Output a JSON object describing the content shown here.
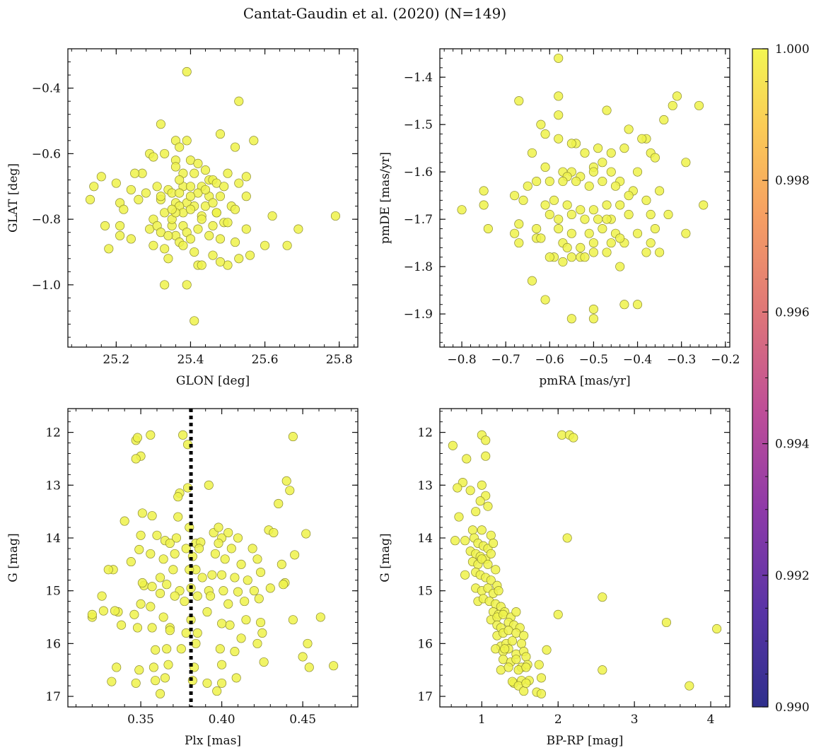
{
  "figure": {
    "title": "Cantat-Gaudin et al. (2020) (N=149)",
    "point_color": "#eef24a",
    "point_edge": "#8a8a30"
  },
  "colorbar": {
    "min": 0.99,
    "max": 1.0,
    "tick_labels": [
      "0.990",
      "0.992",
      "0.994",
      "0.996",
      "0.998",
      "1.000"
    ],
    "tick_values": [
      0.99,
      0.992,
      0.994,
      0.996,
      0.998,
      1.0
    ],
    "colors": [
      "#3b2f8f",
      "#6a35a8",
      "#a63ea6",
      "#d46a80",
      "#f5a25a",
      "#f4f650"
    ]
  },
  "chart_data": [
    {
      "type": "scatter",
      "name": "position",
      "title": "",
      "xlabel": "GLON [deg]",
      "ylabel": "GLAT [deg]",
      "xlim": [
        25.07,
        25.85
      ],
      "ylim": [
        -1.19,
        -0.28
      ],
      "xticks": [
        25.2,
        25.4,
        25.6,
        25.8
      ],
      "xtick_labels": [
        "25.2",
        "25.4",
        "25.6",
        "25.8"
      ],
      "yticks": [
        -1.0,
        -0.8,
        -0.6,
        -0.4
      ],
      "ytick_labels": [
        "−1.0",
        "−0.8",
        "−0.6",
        "−0.4"
      ],
      "y_inverted": false,
      "x": [
        25.39,
        25.53,
        25.32,
        25.36,
        25.39,
        25.37,
        25.48,
        25.52,
        25.57,
        25.29,
        25.3,
        25.33,
        25.36,
        25.4,
        25.42,
        25.44,
        25.5,
        25.27,
        25.38,
        25.41,
        25.45,
        25.55,
        25.25,
        25.16,
        25.14,
        25.2,
        25.24,
        25.28,
        25.31,
        25.34,
        25.38,
        25.4,
        25.43,
        25.46,
        25.47,
        25.49,
        25.53,
        25.35,
        25.37,
        25.42,
        25.45,
        25.48,
        25.21,
        25.22,
        25.26,
        25.32,
        25.36,
        25.39,
        25.41,
        25.44,
        25.46,
        25.51,
        25.55,
        25.13,
        25.21,
        25.3,
        25.33,
        25.37,
        25.38,
        25.4,
        25.43,
        25.47,
        25.52,
        25.62,
        25.79,
        25.17,
        25.21,
        25.29,
        25.31,
        25.35,
        25.38,
        25.43,
        25.46,
        25.49,
        25.55,
        25.24,
        25.32,
        25.36,
        25.39,
        25.42,
        25.48,
        25.69,
        25.18,
        25.3,
        25.33,
        25.37,
        25.4,
        25.45,
        25.52,
        25.56,
        25.6,
        25.66,
        25.34,
        25.38,
        25.41,
        25.46,
        25.5,
        25.53,
        25.42,
        25.43,
        25.48,
        25.33,
        25.39,
        25.34,
        25.35,
        25.36,
        25.4,
        25.44,
        25.47,
        25.5,
        25.41,
        25.36,
        25.37,
        25.32,
        25.35
      ],
      "y": [
        -0.35,
        -0.44,
        -0.51,
        -0.56,
        -0.56,
        -0.58,
        -0.54,
        -0.58,
        -0.56,
        -0.6,
        -0.61,
        -0.6,
        -0.62,
        -0.62,
        -0.63,
        -0.65,
        -0.66,
        -0.66,
        -0.66,
        -0.66,
        -0.68,
        -0.67,
        -0.66,
        -0.67,
        -0.7,
        -0.69,
        -0.71,
        -0.72,
        -0.7,
        -0.71,
        -0.7,
        -0.7,
        -0.7,
        -0.68,
        -0.69,
        -0.7,
        -0.69,
        -0.72,
        -0.72,
        -0.72,
        -0.73,
        -0.73,
        -0.75,
        -0.77,
        -0.74,
        -0.74,
        -0.75,
        -0.75,
        -0.76,
        -0.76,
        -0.75,
        -0.76,
        -0.73,
        -0.74,
        -0.82,
        -0.8,
        -0.78,
        -0.76,
        -0.78,
        -0.77,
        -0.79,
        -0.78,
        -0.77,
        -0.79,
        -0.79,
        -0.82,
        -0.85,
        -0.83,
        -0.82,
        -0.82,
        -0.82,
        -0.8,
        -0.82,
        -0.81,
        -0.83,
        -0.86,
        -0.84,
        -0.85,
        -0.84,
        -0.83,
        -0.86,
        -0.83,
        -0.89,
        -0.88,
        -0.89,
        -0.87,
        -0.86,
        -0.85,
        -0.87,
        -0.91,
        -0.88,
        -0.88,
        -0.92,
        -0.88,
        -0.9,
        -0.91,
        -0.94,
        -0.92,
        -0.94,
        -0.94,
        -0.93,
        -1.0,
        -1.0,
        -0.85,
        -0.8,
        -0.78,
        -0.73,
        -0.71,
        -0.78,
        -0.81,
        -1.11,
        -0.64,
        -0.68,
        -0.73,
        -0.77
      ]
    },
    {
      "type": "scatter",
      "name": "proper-motion",
      "title": "",
      "xlabel": "pmRA [mas/yr]",
      "ylabel": "pmDE [mas/yr]",
      "xlim": [
        -0.85,
        -0.19
      ],
      "ylim": [
        -1.97,
        -1.34
      ],
      "xticks": [
        -0.8,
        -0.7,
        -0.6,
        -0.5,
        -0.4,
        -0.3,
        -0.2
      ],
      "xtick_labels": [
        "−0.8",
        "−0.7",
        "−0.6",
        "−0.5",
        "−0.4",
        "−0.3",
        "−0.2"
      ],
      "yticks": [
        -1.9,
        -1.8,
        -1.7,
        -1.6,
        -1.5,
        -1.4
      ],
      "ytick_labels": [
        "−1.9",
        "−1.8",
        "−1.7",
        "−1.6",
        "−1.5",
        "−1.4"
      ],
      "y_inverted": false,
      "x": [
        -0.58,
        -0.58,
        -0.58,
        -0.67,
        -0.62,
        -0.61,
        -0.31,
        -0.32,
        -0.26,
        -0.34,
        -0.38,
        -0.47,
        -0.42,
        -0.39,
        -0.54,
        -0.58,
        -0.55,
        -0.52,
        -0.64,
        -0.49,
        -0.46,
        -0.37,
        -0.36,
        -0.43,
        -0.29,
        -0.48,
        -0.5,
        -0.55,
        -0.57,
        -0.61,
        -0.56,
        -0.53,
        -0.5,
        -0.46,
        -0.44,
        -0.4,
        -0.63,
        -0.65,
        -0.6,
        -0.57,
        -0.54,
        -0.51,
        -0.48,
        -0.45,
        -0.41,
        -0.35,
        -0.75,
        -0.68,
        -0.66,
        -0.61,
        -0.59,
        -0.56,
        -0.53,
        -0.5,
        -0.47,
        -0.44,
        -0.38,
        -0.8,
        -0.75,
        -0.67,
        -0.63,
        -0.6,
        -0.58,
        -0.55,
        -0.52,
        -0.49,
        -0.46,
        -0.42,
        -0.37,
        -0.25,
        -0.74,
        -0.68,
        -0.63,
        -0.58,
        -0.55,
        -0.51,
        -0.48,
        -0.45,
        -0.4,
        -0.36,
        -0.67,
        -0.62,
        -0.57,
        -0.53,
        -0.5,
        -0.46,
        -0.43,
        -0.37,
        -0.29,
        -0.59,
        -0.55,
        -0.5,
        -0.47,
        -0.44,
        -0.38,
        -0.35,
        -0.6,
        -0.57,
        -0.53,
        -0.64,
        -0.44,
        -0.61,
        -0.5,
        -0.43,
        -0.4,
        -0.55,
        -0.5,
        -0.52,
        -0.56,
        -0.47,
        -0.42,
        -0.33
      ],
      "y": [
        -1.36,
        -1.44,
        -1.48,
        -1.45,
        -1.5,
        -1.52,
        -1.44,
        -1.46,
        -1.46,
        -1.49,
        -1.53,
        -1.47,
        -1.51,
        -1.53,
        -1.54,
        -1.53,
        -1.54,
        -1.56,
        -1.56,
        -1.55,
        -1.56,
        -1.56,
        -1.57,
        -1.55,
        -1.58,
        -1.58,
        -1.59,
        -1.6,
        -1.6,
        -1.59,
        -1.61,
        -1.61,
        -1.6,
        -1.6,
        -1.62,
        -1.6,
        -1.62,
        -1.63,
        -1.62,
        -1.62,
        -1.62,
        -1.63,
        -1.62,
        -1.63,
        -1.64,
        -1.64,
        -1.64,
        -1.65,
        -1.66,
        -1.67,
        -1.66,
        -1.67,
        -1.68,
        -1.68,
        -1.67,
        -1.67,
        -1.66,
        -1.68,
        -1.67,
        -1.71,
        -1.72,
        -1.69,
        -1.7,
        -1.69,
        -1.7,
        -1.7,
        -1.7,
        -1.69,
        -1.69,
        -1.67,
        -1.72,
        -1.73,
        -1.74,
        -1.72,
        -1.73,
        -1.73,
        -1.72,
        -1.73,
        -1.73,
        -1.72,
        -1.75,
        -1.74,
        -1.75,
        -1.76,
        -1.75,
        -1.75,
        -1.75,
        -1.75,
        -1.73,
        -1.78,
        -1.78,
        -1.77,
        -1.77,
        -1.74,
        -1.77,
        -1.77,
        -1.78,
        -1.79,
        -1.78,
        -1.83,
        -1.8,
        -1.87,
        -1.89,
        -1.88,
        -1.88,
        -1.91,
        -1.91,
        -1.78,
        -1.76,
        -1.7,
        -1.65,
        -1.69
      ]
    },
    {
      "type": "scatter",
      "name": "parallax-magnitude",
      "title": "",
      "xlabel": "Plx [mas]",
      "ylabel": "G [mag]",
      "xlim": [
        0.305,
        0.484
      ],
      "ylim": [
        17.2,
        11.55
      ],
      "xticks": [
        0.35,
        0.4,
        0.45
      ],
      "xtick_labels": [
        "0.35",
        "0.40",
        "0.45"
      ],
      "yticks": [
        12,
        13,
        14,
        15,
        16,
        17
      ],
      "ytick_labels": [
        "12",
        "13",
        "14",
        "15",
        "16",
        "17"
      ],
      "y_inverted": true,
      "vline": {
        "x": 0.381,
        "style": "dotted",
        "color": "#000000"
      },
      "x": [
        0.347,
        0.348,
        0.356,
        0.376,
        0.379,
        0.444,
        0.35,
        0.347,
        0.379,
        0.392,
        0.374,
        0.44,
        0.442,
        0.373,
        0.357,
        0.435,
        0.351,
        0.373,
        0.34,
        0.333,
        0.38,
        0.384,
        0.387,
        0.365,
        0.372,
        0.395,
        0.398,
        0.4,
        0.404,
        0.406,
        0.452,
        0.429,
        0.35,
        0.36,
        0.368,
        0.378,
        0.386,
        0.398,
        0.41,
        0.419,
        0.432,
        0.349,
        0.356,
        0.364,
        0.371,
        0.382,
        0.384,
        0.396,
        0.402,
        0.412,
        0.422,
        0.437,
        0.445,
        0.344,
        0.352,
        0.362,
        0.37,
        0.38,
        0.388,
        0.394,
        0.4,
        0.408,
        0.416,
        0.424,
        0.439,
        0.33,
        0.351,
        0.357,
        0.366,
        0.374,
        0.381,
        0.392,
        0.401,
        0.41,
        0.42,
        0.43,
        0.438,
        0.326,
        0.336,
        0.35,
        0.362,
        0.371,
        0.377,
        0.385,
        0.393,
        0.404,
        0.414,
        0.423,
        0.32,
        0.32,
        0.327,
        0.334,
        0.346,
        0.356,
        0.364,
        0.368,
        0.381,
        0.391,
        0.405,
        0.415,
        0.424,
        0.444,
        0.461,
        0.338,
        0.348,
        0.357,
        0.368,
        0.378,
        0.385,
        0.4,
        0.412,
        0.425,
        0.453,
        0.359,
        0.366,
        0.375,
        0.384,
        0.399,
        0.408,
        0.422,
        0.45,
        0.335,
        0.349,
        0.358,
        0.367,
        0.383,
        0.4,
        0.426,
        0.454,
        0.469,
        0.332,
        0.347,
        0.359,
        0.365,
        0.382,
        0.391,
        0.397,
        0.4,
        0.409,
        0.362
      ],
      "y": [
        12.15,
        12.1,
        12.05,
        12.05,
        12.23,
        12.08,
        12.45,
        12.5,
        13.05,
        13.0,
        13.15,
        12.92,
        13.1,
        13.22,
        13.58,
        13.35,
        13.53,
        13.6,
        13.68,
        14.6,
        13.8,
        14.1,
        14.08,
        14.05,
        14.0,
        13.9,
        13.8,
        14.0,
        13.9,
        14.2,
        13.92,
        13.85,
        13.95,
        13.95,
        14.1,
        14.2,
        14.2,
        14.1,
        14.0,
        14.2,
        13.9,
        14.22,
        14.3,
        14.4,
        14.3,
        14.35,
        14.6,
        14.3,
        14.4,
        14.5,
        14.4,
        14.5,
        14.32,
        14.45,
        14.9,
        14.75,
        14.6,
        14.6,
        14.75,
        14.7,
        14.7,
        14.75,
        14.8,
        14.65,
        14.85,
        14.6,
        14.85,
        14.92,
        14.88,
        15.0,
        14.95,
        15.0,
        15.0,
        15.02,
        15.0,
        14.95,
        14.88,
        15.1,
        15.4,
        15.25,
        15.05,
        15.1,
        15.2,
        15.1,
        15.1,
        15.25,
        15.2,
        15.15,
        15.5,
        15.45,
        15.38,
        15.38,
        15.45,
        15.3,
        15.5,
        15.7,
        15.55,
        15.4,
        15.65,
        15.55,
        15.6,
        15.55,
        15.5,
        15.65,
        15.7,
        15.7,
        15.75,
        15.8,
        15.8,
        15.62,
        15.9,
        15.8,
        16.0,
        16.12,
        16.1,
        16.1,
        16.0,
        16.1,
        16.15,
        16.0,
        16.25,
        16.45,
        16.5,
        16.45,
        16.4,
        16.45,
        16.4,
        16.35,
        16.45,
        16.42,
        16.72,
        16.75,
        16.7,
        16.65,
        16.7,
        16.75,
        16.9,
        16.75,
        16.65,
        16.95
      ]
    },
    {
      "type": "scatter",
      "name": "color-magnitude",
      "title": "",
      "xlabel": "BP-RP [mag]",
      "ylabel": "G [mag]",
      "xlim": [
        0.45,
        4.25
      ],
      "ylim": [
        17.2,
        11.55
      ],
      "xticks": [
        1,
        2,
        3,
        4
      ],
      "xtick_labels": [
        "1",
        "2",
        "3",
        "4"
      ],
      "yticks": [
        12,
        13,
        14,
        15,
        16,
        17
      ],
      "ytick_labels": [
        "12",
        "13",
        "14",
        "15",
        "16",
        "17"
      ],
      "y_inverted": true,
      "x": [
        0.62,
        1.0,
        1.05,
        2.05,
        2.15,
        2.2,
        0.8,
        1.05,
        0.75,
        0.68,
        0.85,
        1.0,
        1.05,
        0.7,
        0.92,
        0.98,
        1.08,
        0.88,
        0.65,
        0.78,
        0.9,
        1.0,
        1.12,
        0.95,
        1.02,
        1.08,
        1.15,
        2.12,
        0.85,
        0.92,
        0.98,
        1.05,
        1.12,
        0.88,
        0.95,
        1.0,
        1.08,
        1.18,
        0.78,
        0.92,
        0.98,
        1.05,
        1.12,
        1.2,
        0.92,
        1.0,
        1.08,
        1.15,
        1.22,
        0.95,
        1.02,
        1.1,
        1.18,
        1.25,
        1.15,
        1.22,
        1.3,
        2.58,
        1.12,
        1.2,
        1.28,
        1.38,
        1.45,
        1.2,
        1.25,
        1.35,
        1.42,
        1.5,
        1.2,
        1.28,
        1.35,
        1.45,
        1.55,
        2.0,
        1.25,
        1.32,
        1.4,
        1.52,
        3.42,
        4.08,
        1.18,
        1.28,
        1.35,
        1.45,
        1.55,
        1.85,
        1.28,
        1.38,
        1.45,
        1.58,
        1.52,
        1.6,
        1.25,
        1.35,
        1.48,
        1.58,
        1.75,
        2.58,
        1.42,
        1.52,
        1.62,
        1.78,
        1.4,
        1.48,
        1.55,
        1.72,
        3.72,
        1.58,
        1.78,
        1.3
      ],
      "y": [
        12.25,
        12.05,
        12.15,
        12.05,
        12.05,
        12.1,
        12.5,
        12.45,
        12.95,
        13.05,
        13.1,
        13.0,
        13.2,
        13.6,
        13.5,
        13.3,
        13.4,
        13.85,
        14.05,
        14.05,
        14.0,
        13.85,
        13.95,
        14.1,
        14.15,
        14.2,
        14.1,
        14.0,
        14.25,
        14.3,
        14.35,
        14.4,
        14.3,
        14.45,
        14.5,
        14.4,
        14.5,
        14.6,
        14.7,
        14.65,
        14.7,
        14.75,
        14.8,
        14.9,
        14.95,
        15.0,
        14.95,
        15.05,
        15.0,
        15.2,
        15.15,
        15.2,
        15.25,
        15.3,
        15.4,
        15.45,
        15.4,
        15.12,
        15.55,
        15.5,
        15.45,
        15.5,
        15.4,
        15.65,
        15.7,
        15.6,
        15.65,
        15.7,
        15.85,
        15.8,
        15.75,
        15.8,
        15.85,
        15.45,
        16.05,
        16.0,
        15.95,
        16.0,
        15.6,
        15.72,
        16.1,
        16.15,
        16.1,
        16.2,
        16.15,
        16.12,
        16.3,
        16.35,
        16.3,
        16.25,
        16.45,
        16.4,
        16.5,
        16.45,
        16.5,
        16.45,
        16.4,
        16.5,
        16.75,
        16.7,
        16.7,
        16.65,
        16.72,
        16.8,
        16.9,
        16.92,
        16.8,
        16.75,
        16.95,
        16.1
      ]
    }
  ]
}
